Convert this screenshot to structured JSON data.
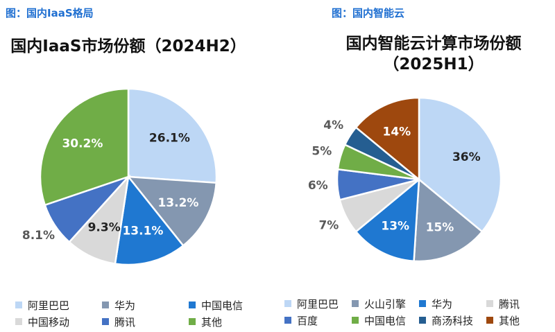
{
  "chart_data": [
    {
      "type": "pie",
      "caption": "图：国内IaaS格局",
      "title": "国内IaaS市场份额（2024H2）",
      "categories": [
        "阿里巴巴",
        "华为",
        "中国电信",
        "中国移动",
        "腾讯",
        "其他"
      ],
      "values": [
        26.1,
        13.2,
        13.1,
        9.3,
        8.1,
        30.2
      ],
      "value_labels": [
        "26.1%",
        "13.2%",
        "13.1%",
        "9.3%",
        "8.1%",
        "30.2%"
      ],
      "colors": [
        "#bdd7f5",
        "#8497b0",
        "#1f78d1",
        "#d9d9d9",
        "#4472c4",
        "#70ad47"
      ]
    },
    {
      "type": "pie",
      "caption": "图：国内智能云",
      "title": "国内智能云计算市场份额（2025H1）",
      "categories": [
        "阿里巴巴",
        "火山引擎",
        "华为",
        "腾讯",
        "百度",
        "中国电信",
        "商汤科技",
        "其他"
      ],
      "values": [
        36,
        15,
        13,
        7,
        6,
        5,
        4,
        14
      ],
      "value_labels": [
        "36%",
        "15%",
        "13%",
        "7%",
        "6%",
        "5%",
        "4%",
        "14%"
      ],
      "colors": [
        "#bdd7f5",
        "#8497b0",
        "#1f78d1",
        "#d9d9d9",
        "#4472c4",
        "#70ad47",
        "#255e91",
        "#9e480e"
      ]
    }
  ]
}
